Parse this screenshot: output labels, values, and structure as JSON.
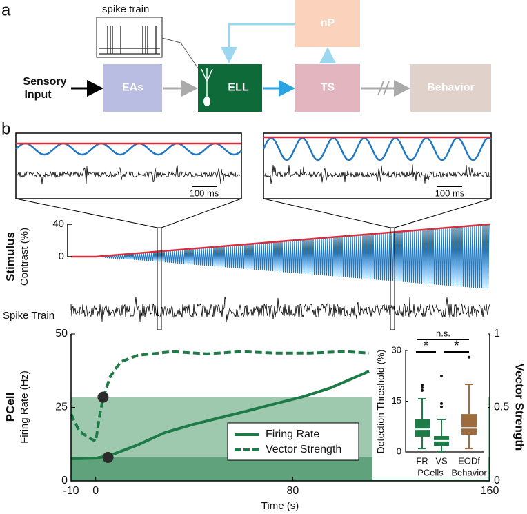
{
  "panel_a": {
    "label": "a",
    "spike_train_label": "spike train",
    "input_label": [
      "Sensory",
      "Input"
    ],
    "nodes": [
      {
        "label": "EAs",
        "color": "#b9bde1"
      },
      {
        "label": "ELL",
        "color": "#0e6b39"
      },
      {
        "label": "TS",
        "color": "#e3b5be"
      },
      {
        "label": "nP",
        "color": "#fbd2bb"
      },
      {
        "label": "Behavior",
        "color": "#e0d1cb"
      }
    ]
  },
  "panel_b": {
    "label": "b"
  },
  "chart_data": [
    {
      "type": "line",
      "title": "Stimulus",
      "ylabel": "Contrast (%)",
      "trace_label": "Spike Train",
      "scale_bar_labels": [
        "100 ms",
        "100 ms"
      ],
      "carrier_color": "#1f78c1",
      "xlim": [
        -10,
        160
      ],
      "x": [
        -10,
        0,
        160
      ],
      "series": [
        {
          "color": "#d6303f",
          "values": [
            0,
            0,
            40
          ]
        }
      ],
      "ylim": [
        0,
        40
      ],
      "yticks": [
        0,
        40
      ]
    },
    {
      "type": "line",
      "title": "PCell",
      "ylabel": "Firing Rate (Hz)",
      "y2label": "Vector Strength",
      "xlabel": "Time (s)",
      "xlim": [
        -10,
        160
      ],
      "xticks": [
        -10,
        0,
        80,
        160
      ],
      "ylim": [
        0,
        50
      ],
      "yticks": [
        0,
        25,
        50
      ],
      "y2lim": [
        0,
        1
      ],
      "y2ticks": [
        0,
        0.5,
        1
      ],
      "series": [
        {
          "name": "Firing Rate",
          "color": "#1e7b47",
          "dashed": false,
          "x": [
            -10,
            0,
            5.9,
            17,
            28,
            39.5,
            51,
            62,
            73,
            84,
            95.5,
            111
          ],
          "values": [
            7.5,
            7.7,
            8.7,
            12.2,
            16.4,
            19.2,
            21.6,
            23.9,
            26.3,
            28.6,
            31.7,
            37.3
          ]
        },
        {
          "name": "Vector Strength",
          "color": "#1e7b47",
          "dashed": true,
          "axis": "y2",
          "x": [
            -10,
            -6.7,
            -2.5,
            0,
            1.7,
            3.1,
            5.9,
            10.1,
            17.1,
            31.1,
            45.1,
            59.1,
            73.1,
            87.1,
            101.1,
            111
          ],
          "values": [
            0.455,
            0.34,
            0.29,
            0.27,
            0.455,
            0.57,
            0.71,
            0.81,
            0.855,
            0.88,
            0.865,
            0.88,
            0.87,
            0.87,
            0.88,
            0.87
          ]
        }
      ],
      "thresholds": [
        {
          "x": 5,
          "value": 8,
          "color": "#5fa27c"
        },
        {
          "x": 3,
          "value": 0.57,
          "axis": "y2",
          "color": "#9fc9ae"
        }
      ]
    },
    {
      "type": "box",
      "ylabel": "Detection Threshold (%)",
      "categories": [
        "FR",
        "VS",
        "EODf"
      ],
      "group_labels": [
        "PCells",
        "Behavior"
      ],
      "ylim": [
        0,
        30
      ],
      "yticks": [
        0,
        15,
        30
      ],
      "annotations": [
        "n.s.",
        "*",
        "*"
      ],
      "boxes": [
        {
          "color": "#1e7b47",
          "whislo": 1,
          "q1": 4.5,
          "med": 6.7,
          "q3": 9.6,
          "whishi": 15.7,
          "fliers": [
            18.2,
            19,
            19.8
          ]
        },
        {
          "color": "#1e7b47",
          "whislo": 0.2,
          "q1": 1.8,
          "med": 3.3,
          "q3": 4.7,
          "whishi": 9.6,
          "fliers": [
            13.3,
            14.3,
            22.4
          ]
        },
        {
          "color": "#9c6b3e",
          "whislo": 1,
          "q1": 5.1,
          "med": 7.1,
          "q3": 11.2,
          "whishi": 20,
          "fliers": [
            28
          ]
        }
      ]
    }
  ]
}
